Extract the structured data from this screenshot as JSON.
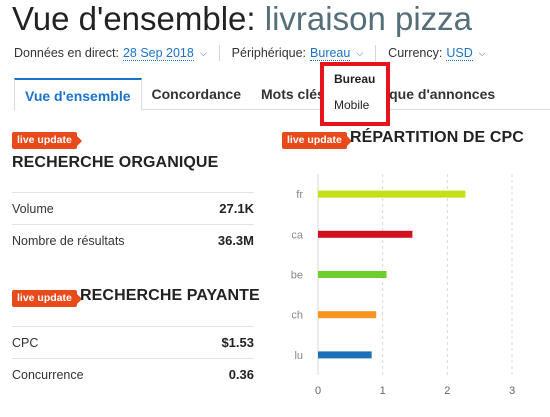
{
  "header": {
    "title_prefix": "Vue d'ensemble: ",
    "title_keyword": "livraison pizza"
  },
  "filters": {
    "live_label": "Données en direct:",
    "live_date": "28 Sep 2018",
    "device_label": "Périphérique:",
    "device_value": "Bureau",
    "currency_label": "Currency:",
    "currency_value": "USD"
  },
  "tabs": [
    {
      "label": "Vue d'ensemble"
    },
    {
      "label": "Concordance"
    },
    {
      "label": "Mots clés"
    },
    {
      "label": "Historique d'annonces"
    }
  ],
  "device_dropdown": {
    "options": [
      "Bureau",
      "Mobile"
    ],
    "selected": "Bureau"
  },
  "organic": {
    "badge": "live update",
    "title": "RECHERCHE ORGANIQUE",
    "rows": [
      {
        "label": "Volume",
        "value": "27.1K"
      },
      {
        "label": "Nombre de résultats",
        "value": "36.3M"
      }
    ]
  },
  "paid": {
    "badge": "live update",
    "title": "RECHERCHE PAYANTE",
    "rows": [
      {
        "label": "CPC",
        "value": "$1.53"
      },
      {
        "label": "Concurrence",
        "value": "0.36"
      }
    ]
  },
  "cpc_chart": {
    "badge": "live update",
    "title": "RÉPARTITION DE CPC"
  },
  "chart_data": {
    "type": "bar",
    "orientation": "horizontal",
    "title": "RÉPARTITION DE CPC",
    "categories": [
      "fr",
      "ca",
      "be",
      "ch",
      "lu"
    ],
    "values": [
      2.28,
      1.46,
      1.06,
      0.9,
      0.83
    ],
    "colors": [
      "#c4e017",
      "#d0131f",
      "#6fcd2f",
      "#f7941d",
      "#1c6fba"
    ],
    "xticks": [
      0,
      1,
      2,
      3
    ],
    "xlim": [
      0,
      3
    ],
    "grid": true
  }
}
